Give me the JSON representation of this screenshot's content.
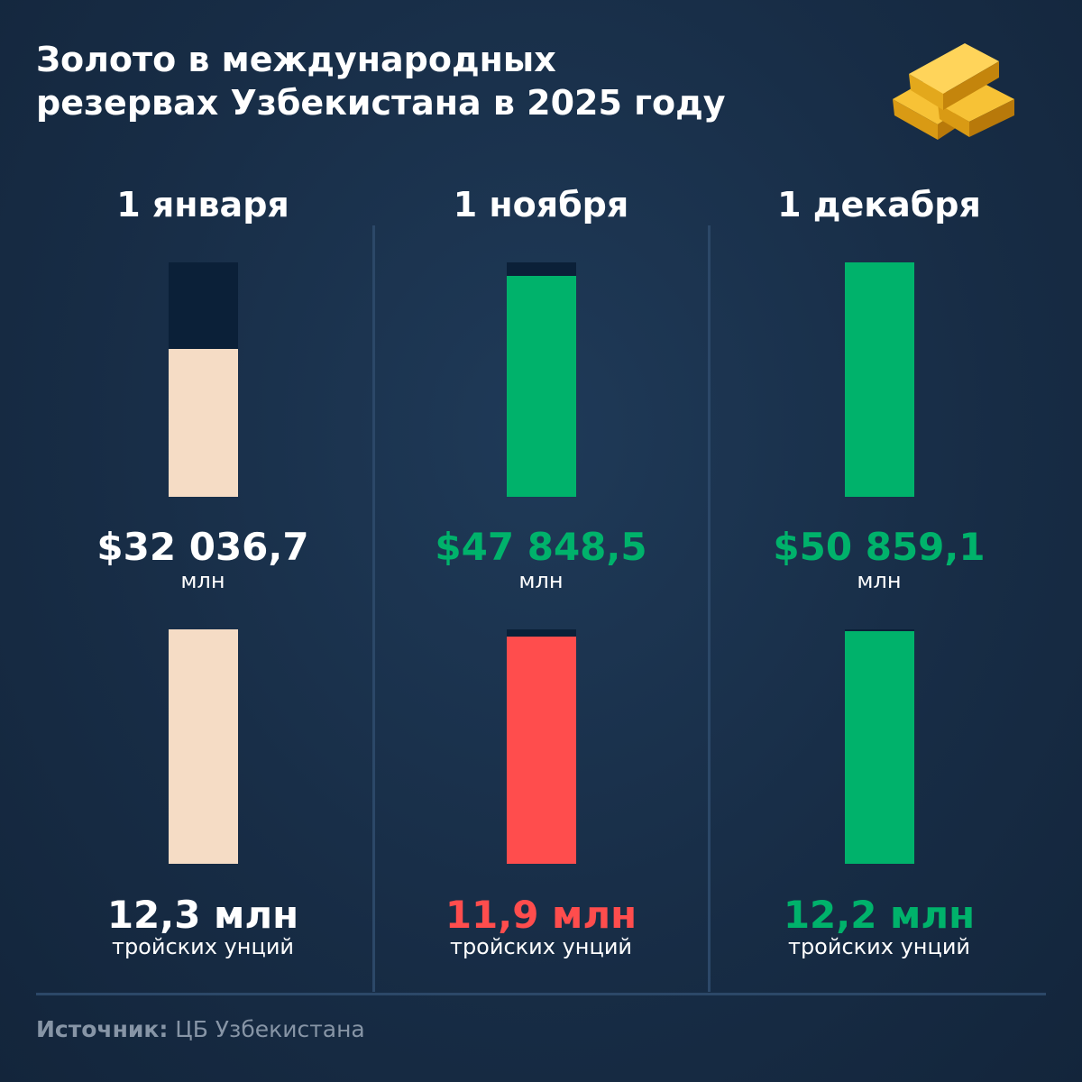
{
  "title": [
    "Золото в международных",
    "резервах Узбекистана в 2025 году"
  ],
  "chart_data": [
    {
      "type": "bar",
      "categories": [
        "1 января",
        "1 ноября",
        "1 декабря"
      ],
      "values": [
        32036.7,
        47848.5,
        50859.1
      ],
      "value_labels": [
        "$32 036,7",
        "$47 848,5",
        "$50 859,1"
      ],
      "unit": "млн",
      "colors": [
        "#f5dcc5",
        "#00b26b",
        "#00b26b"
      ],
      "label_colors": [
        "#ffffff",
        "#00b26b",
        "#00b26b"
      ]
    },
    {
      "type": "bar",
      "values": [
        12.3,
        11.9,
        12.2
      ],
      "value_labels": [
        "12,3 млн",
        "11,9 млн",
        "12,2 млн"
      ],
      "unit": "тройских унций",
      "colors": [
        "#f5dcc5",
        "#ff4d4d",
        "#00b26b"
      ],
      "label_colors": [
        "#ffffff",
        "#ff4d4d",
        "#00b26b"
      ]
    }
  ],
  "source": {
    "label": "Источник:",
    "text": "ЦБ Узбекистана"
  }
}
